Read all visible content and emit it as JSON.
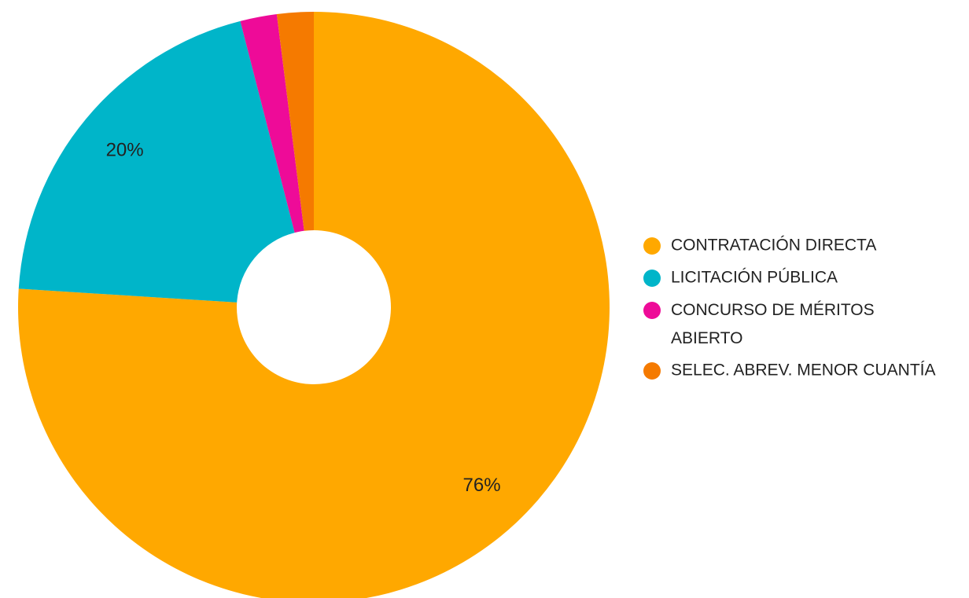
{
  "chart_data": {
    "type": "pie",
    "categories": [
      "CONTRATACIÓN DIRECTA",
      "LICITACIÓN PÚBLICA",
      "CONCURSO DE MÉRITOS ABIERTO",
      "SELEC. ABREV. MENOR CUANTÍA"
    ],
    "values": [
      76,
      20,
      2,
      2
    ],
    "value_labels": [
      "76%",
      "20%",
      null,
      null
    ],
    "colors": [
      "#ffa800",
      "#00b5c9",
      "#ee0b98",
      "#f57a00"
    ],
    "donut": true,
    "legend": "right"
  }
}
